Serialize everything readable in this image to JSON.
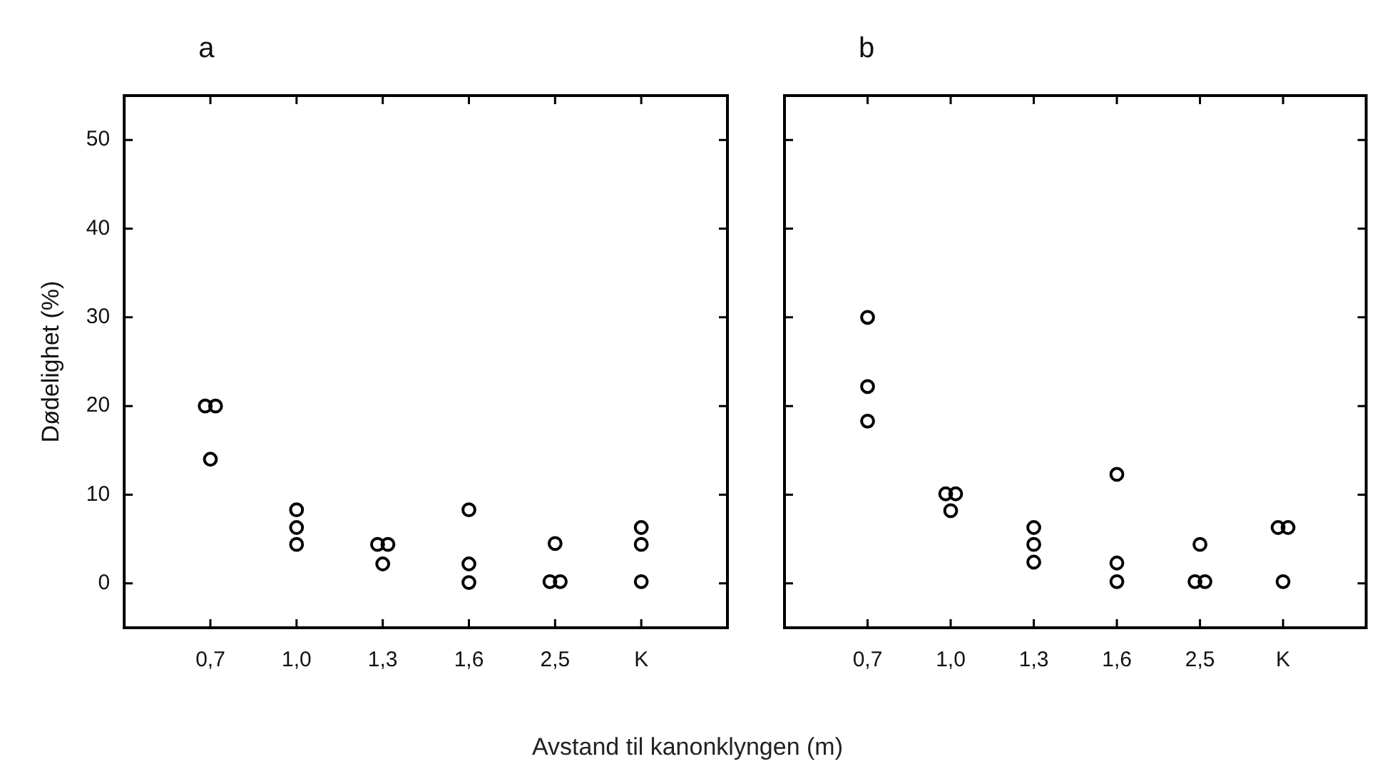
{
  "chart_data": [
    {
      "type": "scatter",
      "title": "a",
      "xlabel": "Avstand til kanonklyngen (m)",
      "ylabel": "Dødelighet (%)",
      "marker": "circle",
      "grid": false,
      "legend": false,
      "categories": [
        "0,7",
        "1,0",
        "1,3",
        "1,6",
        "2,5",
        "K"
      ],
      "ylim": [
        -5,
        55
      ],
      "yticks": [
        0,
        10,
        20,
        30,
        40,
        50
      ],
      "series": [
        {
          "color": "#000000",
          "x": [
            "0,7",
            "0,7",
            "0,7",
            "1,0",
            "1,0",
            "1,0",
            "1,3",
            "1,3",
            "1,3",
            "1,6",
            "1,6",
            "1,6",
            "2,5",
            "2,5",
            "2,5",
            "K",
            "K",
            "K"
          ],
          "values": [
            20,
            20,
            14,
            8.3,
            6.3,
            4.4,
            4.4,
            4.4,
            2.2,
            8.3,
            2.2,
            0.1,
            4.5,
            0.2,
            0.2,
            6.3,
            4.4,
            0.2
          ]
        }
      ]
    },
    {
      "type": "scatter",
      "title": "b",
      "marker": "circle",
      "grid": false,
      "legend": false,
      "tick_labels": "x",
      "categories": [
        "0,7",
        "1,0",
        "1,3",
        "1,6",
        "2,5",
        "K"
      ],
      "ylim": [
        -5,
        55
      ],
      "yticks": [
        0,
        10,
        20,
        30,
        40,
        50
      ],
      "series": [
        {
          "color": "#000000",
          "x": [
            "0,7",
            "0,7",
            "0,7",
            "1,0",
            "1,0",
            "1,0",
            "1,3",
            "1,3",
            "1,3",
            "1,6",
            "1,6",
            "1,6",
            "2,5",
            "2,5",
            "2,5",
            "K",
            "K",
            "K"
          ],
          "values": [
            30,
            22.2,
            18.3,
            10.1,
            10.1,
            8.2,
            6.3,
            4.4,
            2.4,
            12.3,
            2.3,
            0.2,
            4.4,
            0.2,
            0.2,
            6.3,
            6.3,
            0.2
          ]
        }
      ]
    }
  ]
}
